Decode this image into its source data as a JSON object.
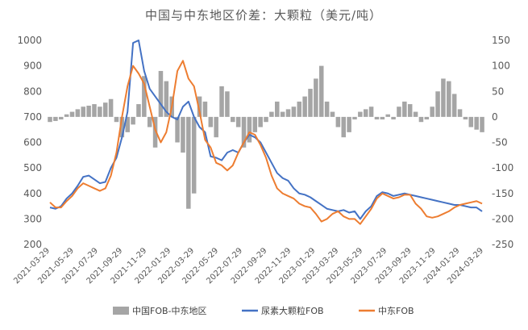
{
  "chart_data": {
    "type": "bar+line",
    "title": "中国与中东地区价差：大颗粒（美元/吨）",
    "xlabel": "",
    "ylabel": "",
    "ylim": [
      200,
      1000
    ],
    "y2lim": [
      -250,
      150
    ],
    "y_ticks": [
      200,
      300,
      400,
      500,
      600,
      700,
      800,
      900,
      1000
    ],
    "y2_ticks": [
      -250,
      -200,
      -150,
      -100,
      -50,
      0,
      50,
      100,
      150
    ],
    "x_tick_labels": [
      "2021-03-29",
      "2021-05-29",
      "2021-07-29",
      "2021-09-29",
      "2021-11-29",
      "2022-01-29",
      "2022-03-29",
      "2022-05-29",
      "2022-07-29",
      "2022-09-29",
      "2022-11-29",
      "2023-01-29",
      "2023-03-29",
      "2023-05-29",
      "2023-07-29",
      "2023-09-29",
      "2023-11-29",
      "2024-01-29",
      "2024-03-29"
    ],
    "grid": false,
    "legend_position": "bottom",
    "series": [
      {
        "name": "中国FOB-中东地区",
        "type": "bar",
        "axis": "right",
        "color": "#a5a5a5",
        "x": [
          "2021-03-29",
          "2021-04-12",
          "2021-04-26",
          "2021-05-10",
          "2021-05-24",
          "2021-06-07",
          "2021-06-21",
          "2021-07-05",
          "2021-07-19",
          "2021-08-02",
          "2021-08-16",
          "2021-08-30",
          "2021-09-13",
          "2021-09-27",
          "2021-10-11",
          "2021-10-25",
          "2021-11-08",
          "2021-11-22",
          "2021-12-06",
          "2021-12-20",
          "2022-01-03",
          "2022-01-17",
          "2022-01-31",
          "2022-02-14",
          "2022-02-28",
          "2022-03-14",
          "2022-03-28",
          "2022-04-11",
          "2022-04-25",
          "2022-05-09",
          "2022-05-23",
          "2022-06-06",
          "2022-06-20",
          "2022-07-04",
          "2022-07-18",
          "2022-08-01",
          "2022-08-15",
          "2022-08-29",
          "2022-09-12",
          "2022-09-26",
          "2022-10-10",
          "2022-10-24",
          "2022-11-07",
          "2022-11-21",
          "2022-12-05",
          "2022-12-19",
          "2023-01-02",
          "2023-01-16",
          "2023-01-30",
          "2023-02-13",
          "2023-02-27",
          "2023-03-13",
          "2023-03-27",
          "2023-04-10",
          "2023-04-24",
          "2023-05-08",
          "2023-05-22",
          "2023-06-05",
          "2023-06-19",
          "2023-07-03",
          "2023-07-17",
          "2023-07-31",
          "2023-08-14",
          "2023-08-28",
          "2023-09-11",
          "2023-09-25",
          "2023-10-09",
          "2023-10-23",
          "2023-11-06",
          "2023-11-20",
          "2023-12-04",
          "2023-12-18",
          "2024-01-01",
          "2024-01-15",
          "2024-01-29",
          "2024-02-12",
          "2024-02-26",
          "2024-03-11",
          "2024-03-25"
        ],
        "values": [
          -10,
          -8,
          -5,
          5,
          10,
          15,
          20,
          22,
          25,
          20,
          28,
          35,
          -10,
          -40,
          -30,
          -15,
          25,
          80,
          -20,
          -60,
          90,
          70,
          40,
          -50,
          -70,
          -180,
          -150,
          40,
          30,
          -20,
          -40,
          60,
          50,
          -10,
          -20,
          -60,
          -50,
          -30,
          -20,
          -10,
          10,
          30,
          10,
          15,
          20,
          30,
          40,
          55,
          75,
          100,
          30,
          10,
          -20,
          -40,
          -30,
          -5,
          10,
          15,
          20,
          -5,
          -5,
          5,
          -5,
          20,
          30,
          25,
          10,
          -10,
          -5,
          20,
          50,
          75,
          70,
          45,
          15,
          -5,
          -20,
          -25,
          -30
        ]
      },
      {
        "name": "尿素大颗粒FOB",
        "type": "line",
        "axis": "left",
        "color": "#4472c4",
        "x": [
          "2021-03-29",
          "2021-04-12",
          "2021-04-26",
          "2021-05-10",
          "2021-05-24",
          "2021-06-07",
          "2021-06-21",
          "2021-07-05",
          "2021-07-19",
          "2021-08-02",
          "2021-08-16",
          "2021-08-30",
          "2021-09-13",
          "2021-09-27",
          "2021-10-11",
          "2021-10-25",
          "2021-11-08",
          "2021-11-22",
          "2021-12-06",
          "2021-12-20",
          "2022-01-03",
          "2022-01-17",
          "2022-01-31",
          "2022-02-14",
          "2022-02-28",
          "2022-03-14",
          "2022-03-28",
          "2022-04-11",
          "2022-04-25",
          "2022-05-09",
          "2022-05-23",
          "2022-06-06",
          "2022-06-20",
          "2022-07-04",
          "2022-07-18",
          "2022-08-01",
          "2022-08-15",
          "2022-08-29",
          "2022-09-12",
          "2022-09-26",
          "2022-10-10",
          "2022-10-24",
          "2022-11-07",
          "2022-11-21",
          "2022-12-05",
          "2022-12-19",
          "2023-01-02",
          "2023-01-16",
          "2023-01-30",
          "2023-02-13",
          "2023-02-27",
          "2023-03-13",
          "2023-03-27",
          "2023-04-10",
          "2023-04-24",
          "2023-05-08",
          "2023-05-22",
          "2023-06-05",
          "2023-06-19",
          "2023-07-03",
          "2023-07-17",
          "2023-07-31",
          "2023-08-14",
          "2023-08-28",
          "2023-09-11",
          "2023-09-25",
          "2023-10-09",
          "2023-10-23",
          "2023-11-06",
          "2023-11-20",
          "2023-12-04",
          "2023-12-18",
          "2024-01-01",
          "2024-01-15",
          "2024-01-29",
          "2024-02-12",
          "2024-02-26",
          "2024-03-11",
          "2024-03-25"
        ],
        "values": [
          345,
          340,
          350,
          380,
          400,
          430,
          465,
          470,
          455,
          440,
          445,
          500,
          540,
          620,
          720,
          990,
          1000,
          880,
          810,
          780,
          750,
          720,
          700,
          690,
          740,
          760,
          700,
          660,
          640,
          545,
          540,
          530,
          560,
          570,
          560,
          600,
          630,
          620,
          600,
          560,
          520,
          480,
          460,
          450,
          420,
          400,
          395,
          385,
          370,
          355,
          340,
          335,
          330,
          335,
          325,
          330,
          300,
          330,
          350,
          390,
          405,
          400,
          390,
          395,
          400,
          395,
          390,
          385,
          380,
          375,
          370,
          365,
          360,
          355,
          355,
          350,
          345,
          345,
          330
        ]
      },
      {
        "name": "中东FOB",
        "type": "line",
        "axis": "left",
        "color": "#ed7d31",
        "x": [
          "2021-03-29",
          "2021-04-12",
          "2021-04-26",
          "2021-05-10",
          "2021-05-24",
          "2021-06-07",
          "2021-06-21",
          "2021-07-05",
          "2021-07-19",
          "2021-08-02",
          "2021-08-16",
          "2021-08-30",
          "2021-09-13",
          "2021-09-27",
          "2021-10-11",
          "2021-10-25",
          "2021-11-08",
          "2021-11-22",
          "2021-12-06",
          "2021-12-20",
          "2022-01-03",
          "2022-01-17",
          "2022-01-31",
          "2022-02-14",
          "2022-02-28",
          "2022-03-14",
          "2022-03-28",
          "2022-04-11",
          "2022-04-25",
          "2022-05-09",
          "2022-05-23",
          "2022-06-06",
          "2022-06-20",
          "2022-07-04",
          "2022-07-18",
          "2022-08-01",
          "2022-08-15",
          "2022-08-29",
          "2022-09-12",
          "2022-09-26",
          "2022-10-10",
          "2022-10-24",
          "2022-11-07",
          "2022-11-21",
          "2022-12-05",
          "2022-12-19",
          "2023-01-02",
          "2023-01-16",
          "2023-01-30",
          "2023-02-13",
          "2023-02-27",
          "2023-03-13",
          "2023-03-27",
          "2023-04-10",
          "2023-04-24",
          "2023-05-08",
          "2023-05-22",
          "2023-06-05",
          "2023-06-19",
          "2023-07-03",
          "2023-07-17",
          "2023-07-31",
          "2023-08-14",
          "2023-08-28",
          "2023-09-11",
          "2023-09-25",
          "2023-10-09",
          "2023-10-23",
          "2023-11-06",
          "2023-11-20",
          "2023-12-04",
          "2023-12-18",
          "2024-01-01",
          "2024-01-15",
          "2024-01-29",
          "2024-02-12",
          "2024-02-26",
          "2024-03-11",
          "2024-03-25"
        ],
        "values": [
          365,
          345,
          345,
          370,
          390,
          420,
          440,
          430,
          420,
          410,
          420,
          470,
          560,
          700,
          820,
          900,
          870,
          830,
          740,
          650,
          600,
          640,
          740,
          880,
          920,
          850,
          820,
          720,
          610,
          580,
          520,
          510,
          490,
          510,
          560,
          600,
          640,
          630,
          590,
          540,
          470,
          420,
          400,
          390,
          380,
          360,
          350,
          345,
          320,
          290,
          300,
          320,
          330,
          310,
          300,
          300,
          280,
          310,
          340,
          380,
          400,
          390,
          380,
          385,
          395,
          395,
          360,
          340,
          310,
          305,
          310,
          320,
          330,
          345,
          355,
          360,
          365,
          370,
          360
        ]
      }
    ]
  }
}
